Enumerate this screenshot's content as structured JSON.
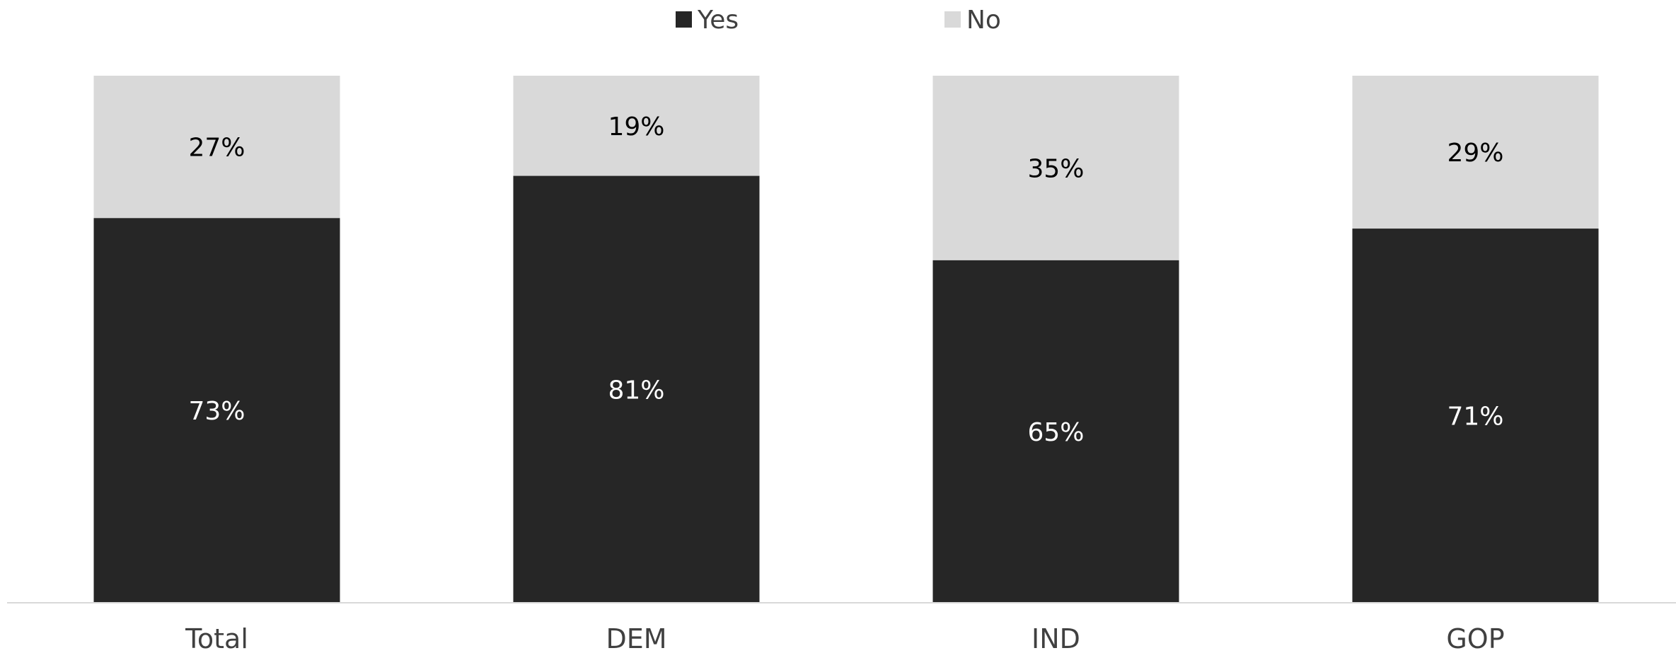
{
  "chart_data": {
    "type": "bar",
    "stacked": true,
    "categories": [
      "Total",
      "DEM",
      "IND",
      "GOP"
    ],
    "series": [
      {
        "name": "Yes",
        "values": [
          73,
          81,
          65,
          71
        ],
        "labels": [
          "73%",
          "81%",
          "65%",
          "71%"
        ],
        "color": "#262626",
        "label_color": "#ffffff"
      },
      {
        "name": "No",
        "values": [
          27,
          19,
          35,
          29
        ],
        "labels": [
          "27%",
          "19%",
          "35%",
          "29%"
        ],
        "color": "#d9d9d9",
        "label_color": "#000000"
      }
    ],
    "title": "",
    "xlabel": "",
    "ylabel": "",
    "ylim": [
      0,
      100
    ],
    "grid": false,
    "legend": "top-center",
    "axis_color": "#d9d9d9"
  }
}
